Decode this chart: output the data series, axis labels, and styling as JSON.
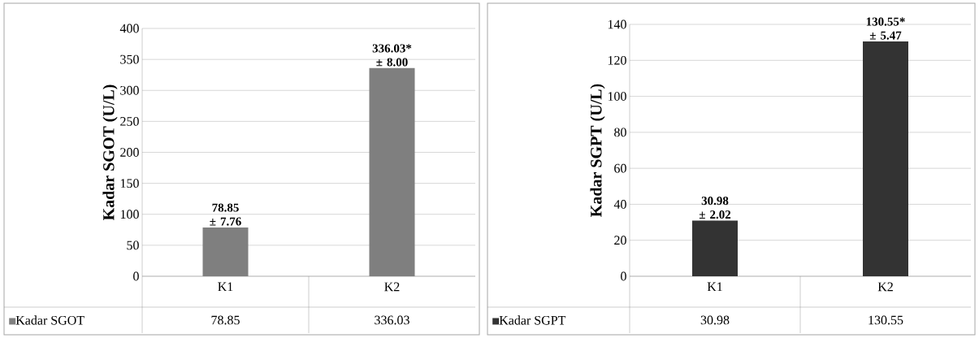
{
  "chart_data": [
    {
      "type": "bar",
      "ylabel": "Kadar SGOT (U/L)",
      "categories": [
        "K1",
        "K2"
      ],
      "series": [
        {
          "name": "Kadar SGOT",
          "color": "#7f7f7f",
          "values": [
            78.85,
            336.03
          ]
        }
      ],
      "annotations": [
        {
          "text": "78.85 ± 7.76",
          "x": "K1",
          "y": 78.85
        },
        {
          "text": "336.03* ± 8.00",
          "x": "K2",
          "y": 336.03
        }
      ],
      "ylim": [
        0,
        400
      ],
      "yticks": [
        0,
        50,
        100,
        150,
        200,
        250,
        300,
        350,
        400
      ],
      "grid": "y",
      "legend": "bottom",
      "data_labels": true
    },
    {
      "type": "bar",
      "ylabel": "Kadar SGPT (U/L)",
      "categories": [
        "K1",
        "K2"
      ],
      "series": [
        {
          "name": "Kadar SGPT",
          "color": "#333333",
          "values": [
            30.98,
            130.55
          ]
        }
      ],
      "annotations": [
        {
          "text": "30.98 ± 2.02",
          "x": "K1",
          "y": 30.98
        },
        {
          "text": "130.55* ± 5.47",
          "x": "K2",
          "y": 130.55
        }
      ],
      "ylim": [
        0,
        140
      ],
      "yticks": [
        0,
        20,
        40,
        60,
        80,
        100,
        120,
        140
      ],
      "grid": "y",
      "legend": "bottom",
      "data_labels": true
    }
  ]
}
